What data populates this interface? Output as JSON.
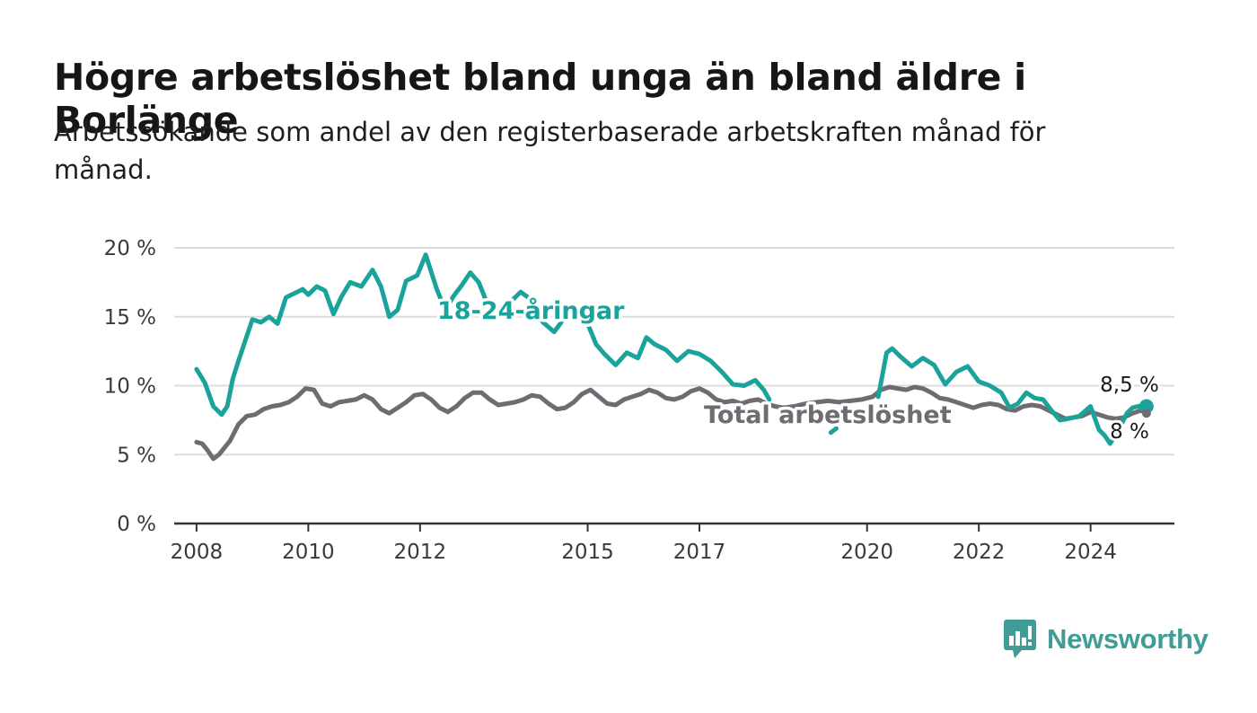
{
  "header": {
    "title": "Högre arbetslöshet bland unga än bland äldre i Borlänge",
    "subtitle": "Arbetssökande som andel av den registerbaserade arbetskraften månad för månad."
  },
  "brand": {
    "name": "Newsworthy",
    "icon": "bar-chart-logo-icon",
    "color": "#3f9c96"
  },
  "colors": {
    "youth": "#1aa39a",
    "total": "#6f6b72",
    "grid": "#dcdcdc",
    "axis": "#333333"
  },
  "chart_data": {
    "type": "line",
    "ylim": [
      0,
      20
    ],
    "yticks": [
      0,
      5,
      10,
      15,
      20
    ],
    "ytick_labels": [
      "0 %",
      "5 %",
      "10 %",
      "15 %",
      "20 %"
    ],
    "xlim": [
      2007.6,
      2025.5
    ],
    "xticks": [
      2008,
      2010,
      2012,
      2015,
      2017,
      2020,
      2022,
      2024
    ],
    "xtick_labels": [
      "2008",
      "2010",
      "2012",
      "2015",
      "2017",
      "2020",
      "2022",
      "2024"
    ],
    "grid": true,
    "series": [
      {
        "name": "18-24-åringar",
        "label_position": "2012.0-2015.3 near 15 %",
        "end_label": "8,5 %",
        "x": [
          2008.0,
          2008.15,
          2008.3,
          2008.45,
          2008.55,
          2008.65,
          2008.75,
          2008.85,
          2009.0,
          2009.15,
          2009.3,
          2009.45,
          2009.6,
          2009.75,
          2009.9,
          2010.0,
          2010.15,
          2010.3,
          2010.45,
          2010.6,
          2010.75,
          2010.95,
          2011.15,
          2011.3,
          2011.45,
          2011.6,
          2011.75,
          2011.95,
          2012.1,
          2012.3,
          2012.45,
          2012.6,
          2012.75,
          2012.9,
          2013.05,
          2013.2,
          2013.4,
          2013.6,
          2013.8,
          2014.0,
          2014.2,
          2014.4,
          2014.6,
          2014.8,
          2015.0,
          2015.15,
          2015.3,
          2015.5,
          2015.7,
          2015.9,
          2016.05,
          2016.2,
          2016.4,
          2016.6,
          2016.8,
          2017.0,
          2017.2,
          2017.4,
          2017.6,
          2017.8,
          2018.0,
          2018.15,
          2018.25,
          null,
          2019.35,
          2019.45,
          null,
          2020.2,
          2020.35,
          2020.45,
          2020.6,
          2020.8,
          2021.0,
          2021.2,
          2021.4,
          2021.6,
          2021.8,
          2022.0,
          2022.2,
          2022.4,
          2022.55,
          2022.7,
          2022.85,
          2023.0,
          2023.15,
          2023.3,
          2023.45,
          2023.6,
          2023.8,
          2024.0,
          2024.15,
          2024.25,
          2024.35,
          2024.5,
          2024.65,
          2024.75,
          2024.85,
          2025.0
        ],
        "y": [
          11.2,
          10.2,
          8.5,
          7.9,
          8.5,
          10.5,
          11.8,
          13.0,
          14.8,
          14.6,
          15.0,
          14.5,
          16.4,
          16.7,
          17.0,
          16.6,
          17.2,
          16.9,
          15.2,
          16.5,
          17.5,
          17.2,
          18.4,
          17.2,
          15.0,
          15.5,
          17.6,
          18.0,
          19.5,
          17.0,
          15.5,
          16.5,
          17.3,
          18.2,
          17.5,
          16.0,
          15.2,
          16.0,
          16.8,
          16.2,
          14.6,
          13.9,
          15.0,
          15.5,
          14.5,
          13.0,
          12.3,
          11.5,
          12.4,
          12.0,
          13.5,
          13.0,
          12.6,
          11.8,
          12.5,
          12.3,
          11.8,
          11.0,
          10.1,
          10.0,
          10.4,
          9.7,
          9.0,
          null,
          6.6,
          6.9,
          null,
          9.2,
          12.4,
          12.7,
          12.1,
          11.4,
          12.0,
          11.5,
          10.1,
          11.0,
          11.4,
          10.3,
          10.0,
          9.5,
          8.4,
          8.7,
          9.5,
          9.1,
          9.0,
          8.2,
          7.5,
          7.6,
          7.8,
          8.5,
          6.8,
          6.4,
          5.8,
          6.8,
          8.0,
          8.4,
          8.5,
          8.5
        ]
      },
      {
        "name": "Total arbetslöshet",
        "label_position": "2017.0-2022.0 near 8 %",
        "end_label": "8 %",
        "x": [
          2008.0,
          2008.1,
          2008.2,
          2008.3,
          2008.4,
          2008.5,
          2008.6,
          2008.75,
          2008.9,
          2009.05,
          2009.2,
          2009.35,
          2009.5,
          2009.65,
          2009.8,
          2009.95,
          2010.1,
          2010.25,
          2010.4,
          2010.55,
          2010.7,
          2010.85,
          2011.0,
          2011.15,
          2011.3,
          2011.45,
          2011.6,
          2011.75,
          2011.9,
          2012.05,
          2012.2,
          2012.35,
          2012.5,
          2012.65,
          2012.8,
          2012.95,
          2013.1,
          2013.25,
          2013.4,
          2013.55,
          2013.7,
          2013.85,
          2014.0,
          2014.15,
          2014.3,
          2014.45,
          2014.6,
          2014.75,
          2014.9,
          2015.05,
          2015.2,
          2015.35,
          2015.5,
          2015.65,
          2015.8,
          2015.95,
          2016.1,
          2016.25,
          2016.4,
          2016.55,
          2016.7,
          2016.85,
          2017.0,
          2017.15,
          2017.3,
          2017.45,
          2017.6,
          2017.75,
          2017.9,
          2018.05,
          2018.2,
          2018.35,
          2018.5,
          2018.7,
          2018.9,
          2019.1,
          2019.3,
          2019.5,
          2019.7,
          2019.9,
          2020.1,
          2020.25,
          2020.4,
          2020.55,
          2020.7,
          2020.85,
          2021.0,
          2021.15,
          2021.3,
          2021.45,
          2021.6,
          2021.75,
          2021.9,
          2022.05,
          2022.2,
          2022.35,
          2022.5,
          2022.65,
          2022.8,
          2022.95,
          2023.1,
          2023.25,
          2023.4,
          2023.55,
          2023.7,
          2023.85,
          2024.0,
          2024.15,
          2024.3,
          2024.45,
          2024.6,
          2024.75,
          2024.9,
          2025.0
        ],
        "y": [
          5.9,
          5.8,
          5.3,
          4.7,
          5.0,
          5.5,
          6.0,
          7.2,
          7.8,
          7.9,
          8.3,
          8.5,
          8.6,
          8.8,
          9.2,
          9.8,
          9.7,
          8.7,
          8.5,
          8.8,
          8.9,
          9.0,
          9.3,
          9.0,
          8.3,
          8.0,
          8.4,
          8.8,
          9.3,
          9.4,
          9.0,
          8.4,
          8.1,
          8.5,
          9.1,
          9.5,
          9.5,
          9.0,
          8.6,
          8.7,
          8.8,
          9.0,
          9.3,
          9.2,
          8.7,
          8.3,
          8.4,
          8.8,
          9.4,
          9.7,
          9.2,
          8.7,
          8.6,
          9.0,
          9.2,
          9.4,
          9.7,
          9.5,
          9.1,
          9.0,
          9.2,
          9.6,
          9.8,
          9.5,
          9.0,
          8.8,
          8.9,
          8.7,
          8.9,
          9.0,
          8.7,
          8.5,
          8.4,
          8.5,
          8.7,
          8.8,
          8.9,
          8.8,
          8.9,
          9.0,
          9.2,
          9.7,
          9.9,
          9.8,
          9.7,
          9.9,
          9.8,
          9.5,
          9.1,
          9.0,
          8.8,
          8.6,
          8.4,
          8.6,
          8.7,
          8.6,
          8.3,
          8.2,
          8.5,
          8.6,
          8.5,
          8.2,
          7.9,
          7.6,
          7.7,
          7.8,
          8.1,
          7.9,
          7.7,
          7.6,
          7.7,
          8.0,
          8.2,
          8.0
        ]
      }
    ]
  }
}
